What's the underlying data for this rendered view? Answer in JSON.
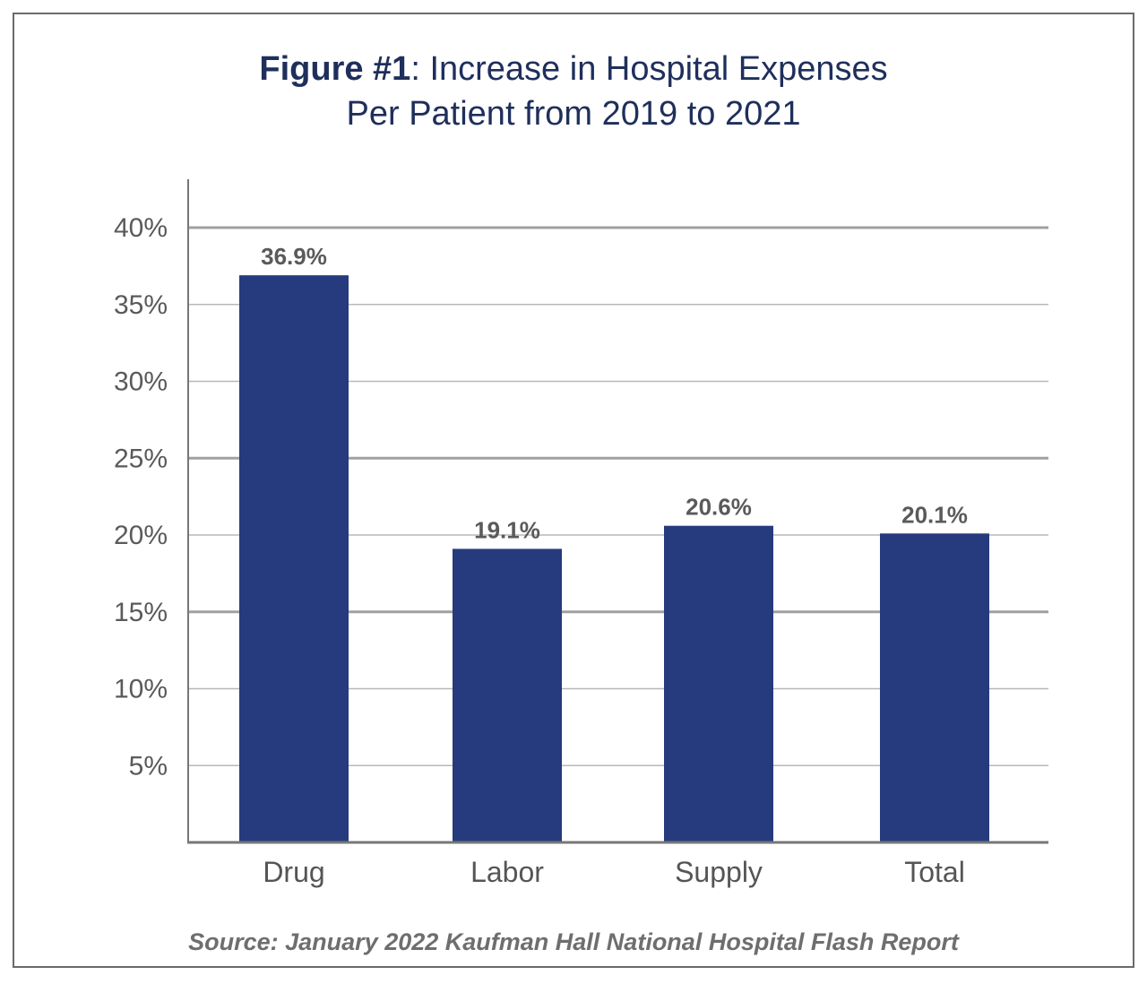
{
  "chart_data": {
    "type": "bar",
    "title_bold": "Figure #1",
    "title_rest": ": Increase in Hospital Expenses",
    "title_line2": "Per Patient from 2019 to 2021",
    "categories": [
      "Drug",
      "Labor",
      "Supply",
      "Total"
    ],
    "values": [
      36.9,
      19.1,
      20.6,
      20.1
    ],
    "data_labels": [
      "36.9%",
      "19.1%",
      "20.6%",
      "20.1%"
    ],
    "ylim": [
      0,
      40
    ],
    "yticks": [
      5,
      10,
      15,
      20,
      25,
      30,
      35,
      40
    ],
    "ytick_labels": [
      "5%",
      "10%",
      "15%",
      "20%",
      "25%",
      "30%",
      "35%",
      "40%"
    ],
    "grid": true,
    "bar_color": "#263b7d",
    "source": "Source: January 2022 Kaufman Hall National Hospital Flash Report"
  }
}
